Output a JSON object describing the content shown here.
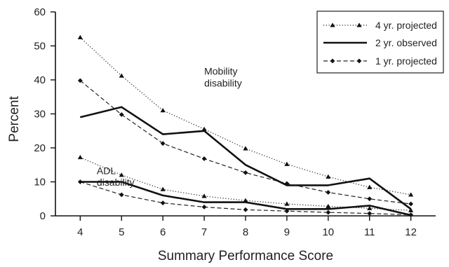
{
  "chart_data": {
    "type": "line",
    "xlabel": "Summary Performance Score",
    "ylabel": "Percent",
    "x": [
      4,
      5,
      6,
      7,
      8,
      9,
      10,
      11,
      12
    ],
    "xlim": [
      3.4,
      12.6
    ],
    "ylim": [
      0,
      60
    ],
    "yticks": [
      0,
      10,
      20,
      30,
      40,
      50,
      60
    ],
    "grid": false,
    "legend_position": "top-right",
    "legend": [
      {
        "label": "4 yr. projected",
        "style": "dotted-triangle"
      },
      {
        "label": "2 yr. observed",
        "style": "solid"
      },
      {
        "label": "1 yr. projected",
        "style": "dashed-diamond"
      }
    ],
    "annotations": [
      {
        "text": "Mobility",
        "x": 7.0,
        "y": 41.5
      },
      {
        "text": "disability",
        "x": 7.0,
        "y": 38.0
      },
      {
        "text": "ADL",
        "x": 4.4,
        "y": 12.3
      },
      {
        "text": "disability",
        "x": 4.4,
        "y": 8.9
      }
    ],
    "groups": [
      {
        "name": "Mobility disability",
        "series": [
          {
            "name": "4 yr. projected",
            "style": "dotted-triangle",
            "values": [
              52.5,
              41.2,
              31.0,
              25.5,
              19.8,
              15.2,
              11.5,
              8.4,
              6.2
            ]
          },
          {
            "name": "2 yr. observed",
            "style": "solid",
            "values": [
              29.0,
              32.0,
              24.0,
              25.0,
              15.0,
              9.0,
              9.0,
              11.0,
              2.0
            ]
          },
          {
            "name": "1 yr. projected",
            "style": "dashed-diamond",
            "values": [
              39.8,
              29.8,
              21.3,
              16.8,
              12.7,
              9.5,
              6.9,
              5.0,
              3.5
            ]
          }
        ]
      },
      {
        "name": "ADL disability",
        "series": [
          {
            "name": "4 yr. projected",
            "style": "dotted-triangle",
            "values": [
              17.2,
              12.0,
              7.8,
              5.8,
              4.5,
              3.5,
              2.8,
              2.2,
              1.6
            ]
          },
          {
            "name": "2 yr. observed",
            "style": "solid",
            "values": [
              10.0,
              10.0,
              6.0,
              4.0,
              4.0,
              2.0,
              2.0,
              3.0,
              0.2
            ]
          },
          {
            "name": "1 yr. projected",
            "style": "dashed-diamond",
            "values": [
              10.0,
              6.2,
              3.8,
              2.6,
              1.8,
              1.4,
              1.0,
              0.7,
              0.3
            ]
          }
        ]
      }
    ]
  }
}
